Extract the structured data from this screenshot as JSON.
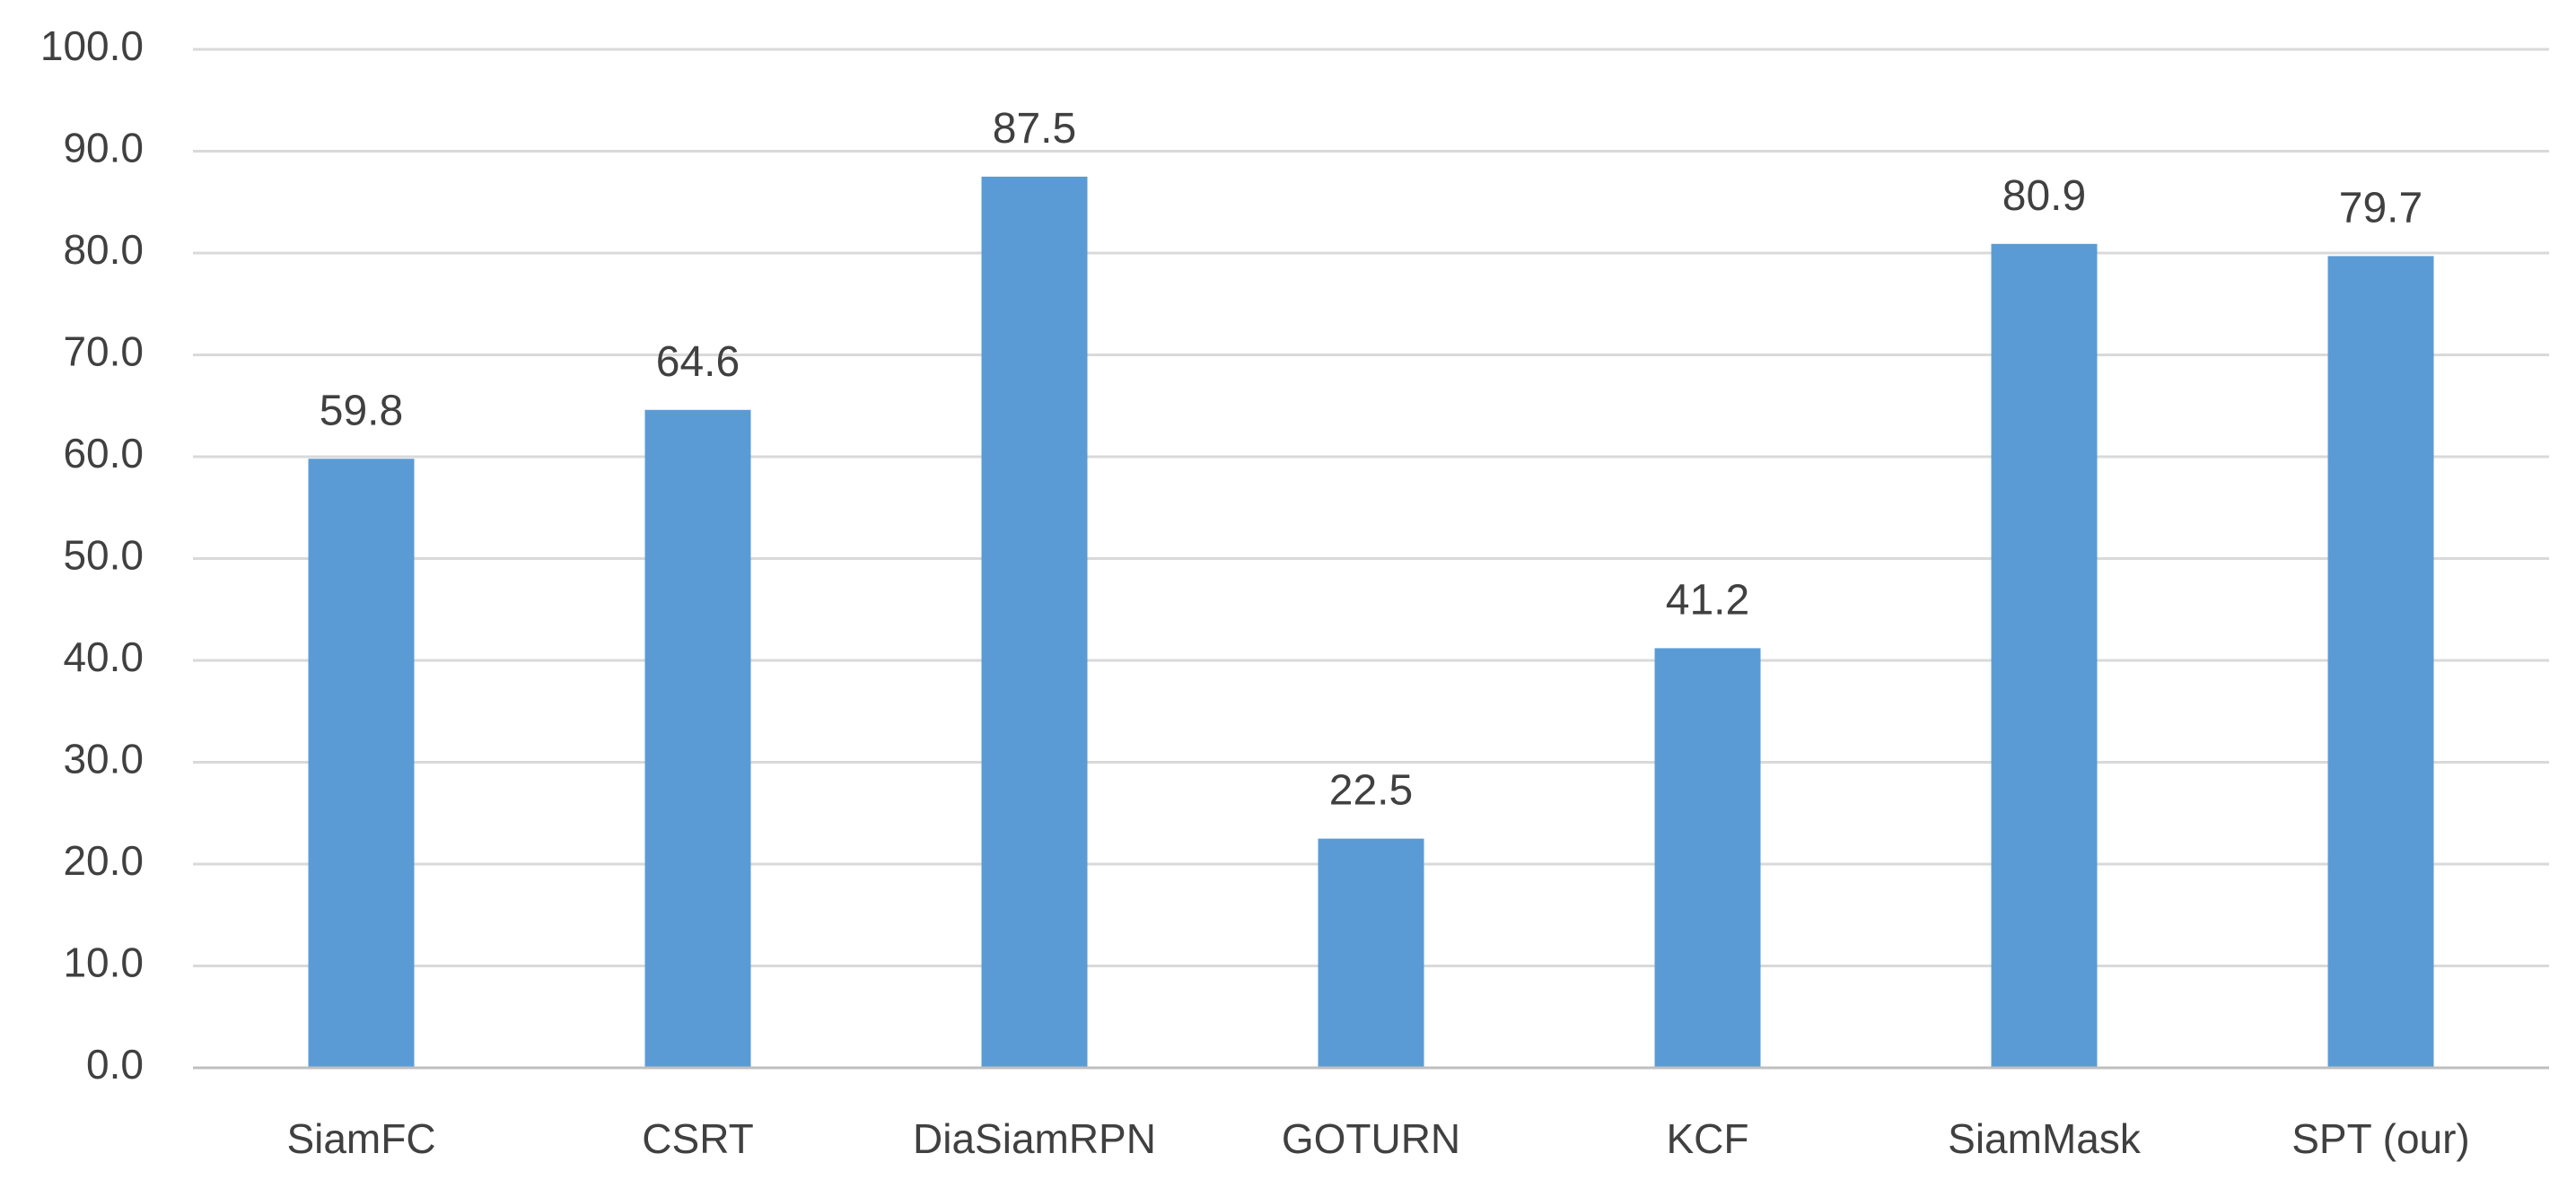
{
  "chart_data": {
    "type": "bar",
    "categories": [
      "SiamFC",
      "CSRT",
      "DiaSiamRPN",
      "GOTURN",
      "KCF",
      "SiamMask",
      "SPT (our)"
    ],
    "values": [
      59.8,
      64.6,
      87.5,
      22.5,
      41.2,
      80.9,
      79.7
    ],
    "value_labels": [
      "59.8",
      "64.6",
      "87.5",
      "22.5",
      "41.2",
      "80.9",
      "79.7"
    ],
    "y_ticks": [
      "0.0",
      "10.0",
      "20.0",
      "30.0",
      "40.0",
      "50.0",
      "60.0",
      "70.0",
      "80.0",
      "90.0",
      "100.0"
    ],
    "ylim": [
      0,
      100
    ],
    "title": "",
    "xlabel": "",
    "ylabel": "",
    "grid": true,
    "legend": "none",
    "bar_color": "#5b9bd5",
    "gridline_color": "#d9d9d9",
    "text_color": "#404040"
  }
}
